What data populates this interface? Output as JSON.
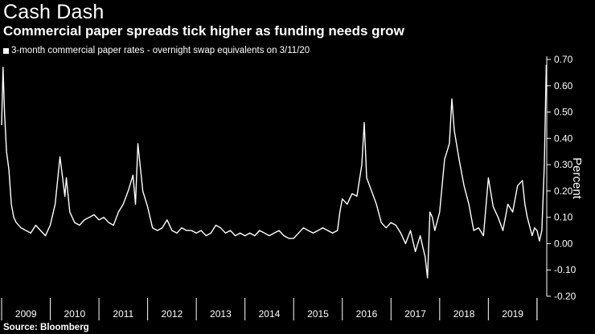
{
  "header": {
    "title": "Cash Dash",
    "subtitle": "Commercial paper spreads tick higher as funding needs grow"
  },
  "footer": {
    "source": "Source: Bloomberg"
  },
  "colors": {
    "background": "#000000",
    "line": "#ffffff"
  },
  "chart_data": {
    "type": "line",
    "title": "Cash Dash",
    "subtitle": "Commercial paper spreads tick higher as funding needs grow",
    "xlabel": "",
    "ylabel": "Percent",
    "y_axis_position": "right",
    "ylim": [
      -0.2,
      0.7
    ],
    "yticks": [
      0.7,
      0.6,
      0.5,
      0.4,
      0.3,
      0.2,
      0.1,
      0.0,
      -0.1,
      -0.2
    ],
    "ytick_labels": [
      "0.70",
      "0.60",
      "0.50",
      "0.40",
      "0.30",
      "0.20",
      "0.10",
      "0.00",
      "-0.10",
      "-0.20"
    ],
    "xlim": [
      2009.0,
      2020.2
    ],
    "x_categories": [
      "2009",
      "2010",
      "2011",
      "2012",
      "2013",
      "2014",
      "2015",
      "2016",
      "2017",
      "2018",
      "2019"
    ],
    "grid": false,
    "legend_position": "top-left",
    "series": [
      {
        "name": "3-month commercial paper rates - overnight swap equivalents on 3/11/20",
        "x": [
          2009.0,
          2009.03,
          2009.06,
          2009.1,
          2009.15,
          2009.2,
          2009.25,
          2009.3,
          2009.4,
          2009.5,
          2009.6,
          2009.7,
          2009.8,
          2009.9,
          2010.0,
          2010.1,
          2010.2,
          2010.3,
          2010.33,
          2010.4,
          2010.5,
          2010.6,
          2010.7,
          2010.8,
          2010.9,
          2011.0,
          2011.1,
          2011.2,
          2011.3,
          2011.4,
          2011.5,
          2011.6,
          2011.7,
          2011.75,
          2011.8,
          2011.9,
          2012.0,
          2012.05,
          2012.1,
          2012.2,
          2012.3,
          2012.4,
          2012.5,
          2012.6,
          2012.7,
          2012.8,
          2012.9,
          2013.0,
          2013.1,
          2013.2,
          2013.3,
          2013.4,
          2013.5,
          2013.6,
          2013.7,
          2013.8,
          2013.9,
          2014.0,
          2014.1,
          2014.2,
          2014.3,
          2014.4,
          2014.5,
          2014.6,
          2014.7,
          2014.8,
          2014.9,
          2015.0,
          2015.1,
          2015.2,
          2015.3,
          2015.4,
          2015.5,
          2015.6,
          2015.7,
          2015.8,
          2015.9,
          2015.95,
          2016.0,
          2016.1,
          2016.2,
          2016.3,
          2016.4,
          2016.45,
          2016.5,
          2016.6,
          2016.7,
          2016.8,
          2016.9,
          2017.0,
          2017.1,
          2017.2,
          2017.3,
          2017.4,
          2017.5,
          2017.6,
          2017.7,
          2017.75,
          2017.8,
          2017.85,
          2017.9,
          2018.0,
          2018.1,
          2018.2,
          2018.25,
          2018.3,
          2018.4,
          2018.5,
          2018.6,
          2018.7,
          2018.8,
          2018.9,
          2019.0,
          2019.1,
          2019.2,
          2019.3,
          2019.4,
          2019.5,
          2019.6,
          2019.7,
          2019.75,
          2019.8,
          2019.9,
          2019.95,
          2020.0,
          2020.05,
          2020.1,
          2020.15,
          2020.19
        ],
        "y": [
          0.45,
          0.67,
          0.5,
          0.35,
          0.28,
          0.15,
          0.1,
          0.08,
          0.06,
          0.05,
          0.04,
          0.07,
          0.05,
          0.03,
          0.07,
          0.15,
          0.33,
          0.18,
          0.25,
          0.12,
          0.08,
          0.07,
          0.09,
          0.1,
          0.11,
          0.09,
          0.1,
          0.08,
          0.07,
          0.12,
          0.15,
          0.2,
          0.26,
          0.15,
          0.38,
          0.2,
          0.14,
          0.1,
          0.06,
          0.05,
          0.06,
          0.09,
          0.05,
          0.04,
          0.06,
          0.05,
          0.05,
          0.04,
          0.05,
          0.03,
          0.04,
          0.07,
          0.06,
          0.04,
          0.05,
          0.03,
          0.04,
          0.03,
          0.04,
          0.03,
          0.05,
          0.04,
          0.03,
          0.04,
          0.05,
          0.03,
          0.02,
          0.02,
          0.04,
          0.06,
          0.05,
          0.04,
          0.05,
          0.06,
          0.05,
          0.04,
          0.05,
          0.12,
          0.17,
          0.15,
          0.19,
          0.18,
          0.3,
          0.46,
          0.25,
          0.2,
          0.15,
          0.08,
          0.06,
          0.08,
          0.07,
          0.04,
          0.0,
          0.05,
          -0.03,
          0.03,
          -0.05,
          -0.13,
          0.12,
          0.1,
          0.05,
          0.12,
          0.32,
          0.38,
          0.55,
          0.43,
          0.32,
          0.22,
          0.15,
          0.05,
          0.06,
          0.03,
          0.25,
          0.14,
          0.1,
          0.05,
          0.15,
          0.12,
          0.22,
          0.24,
          0.15,
          0.1,
          0.03,
          0.06,
          0.05,
          0.01,
          0.05,
          0.3,
          0.68
        ]
      }
    ]
  }
}
